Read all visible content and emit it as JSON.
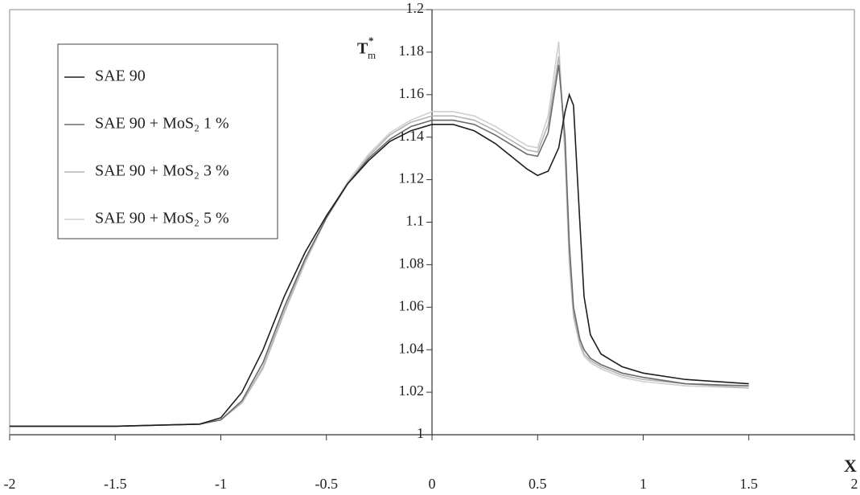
{
  "chart_data": {
    "type": "line",
    "x_label": "X",
    "y_label": "T",
    "y_label_sup": "*",
    "y_label_sub": "m",
    "x": [
      -2,
      -1.5,
      -1.1,
      -1,
      -0.9,
      -0.8,
      -0.7,
      -0.6,
      -0.5,
      -0.4,
      -0.3,
      -0.2,
      -0.1,
      0,
      0.1,
      0.2,
      0.3,
      0.4,
      0.45,
      0.5,
      0.55,
      0.6,
      0.63,
      0.65,
      0.67,
      0.7,
      0.72,
      0.75,
      0.8,
      0.9,
      1,
      1.2,
      1.5
    ],
    "series": [
      {
        "name": "SAE 90",
        "color": "#1e1e1e",
        "values": [
          1.004,
          1.004,
          1.005,
          1.008,
          1.02,
          1.04,
          1.065,
          1.086,
          1.103,
          1.118,
          1.129,
          1.138,
          1.143,
          1.146,
          1.146,
          1.143,
          1.137,
          1.129,
          1.125,
          1.122,
          1.124,
          1.135,
          1.152,
          1.16,
          1.155,
          1.1,
          1.065,
          1.047,
          1.038,
          1.032,
          1.029,
          1.026,
          1.024
        ]
      },
      {
        "name": "SAE 90 + MoS₂  1 %",
        "color": "#6a6a6a",
        "values": [
          1.004,
          1.004,
          1.005,
          1.007,
          1.016,
          1.034,
          1.06,
          1.083,
          1.102,
          1.118,
          1.13,
          1.139,
          1.145,
          1.148,
          1.148,
          1.146,
          1.141,
          1.135,
          1.132,
          1.131,
          1.142,
          1.174,
          1.14,
          1.09,
          1.06,
          1.045,
          1.04,
          1.036,
          1.033,
          1.029,
          1.027,
          1.024,
          1.023
        ]
      },
      {
        "name": "SAE 90 + MoS₂  3 %",
        "color": "#b4b4b4",
        "values": [
          1.004,
          1.004,
          1.005,
          1.007,
          1.015,
          1.032,
          1.058,
          1.082,
          1.102,
          1.118,
          1.131,
          1.141,
          1.147,
          1.15,
          1.15,
          1.148,
          1.143,
          1.137,
          1.134,
          1.133,
          1.146,
          1.178,
          1.135,
          1.085,
          1.057,
          1.043,
          1.038,
          1.035,
          1.032,
          1.028,
          1.026,
          1.024,
          1.022
        ]
      },
      {
        "name": "SAE 90 + MoS₂  5 %",
        "color": "#cfcfcf",
        "values": [
          1.004,
          1.004,
          1.005,
          1.007,
          1.015,
          1.031,
          1.057,
          1.081,
          1.102,
          1.119,
          1.132,
          1.142,
          1.148,
          1.152,
          1.152,
          1.15,
          1.145,
          1.139,
          1.136,
          1.135,
          1.15,
          1.185,
          1.13,
          1.08,
          1.055,
          1.042,
          1.037,
          1.034,
          1.031,
          1.027,
          1.025,
          1.023,
          1.022
        ]
      }
    ],
    "xlim": [
      -2,
      2
    ],
    "ylim": [
      1,
      1.2
    ],
    "xticks": [
      -2,
      -1.5,
      -1,
      -0.5,
      0,
      0.5,
      1,
      1.5,
      2
    ],
    "yticks": [
      1,
      1.02,
      1.04,
      1.06,
      1.08,
      1.1,
      1.12,
      1.14,
      1.16,
      1.18,
      1.2
    ],
    "grid": false,
    "legend": "upper left"
  }
}
